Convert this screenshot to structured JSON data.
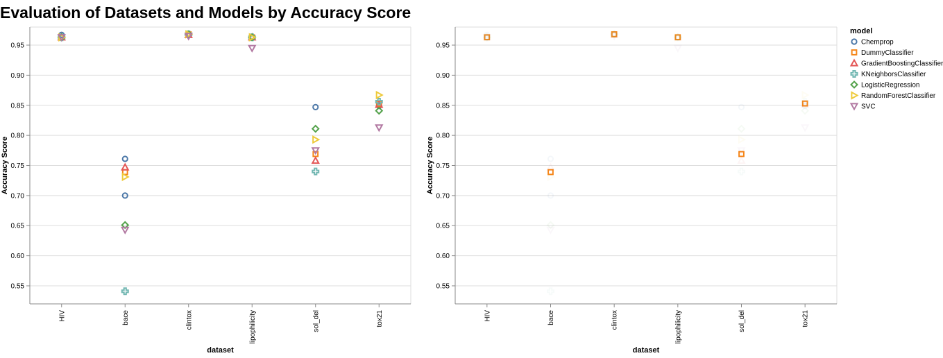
{
  "title": "Evaluation of Datasets and Models by Accuracy Score",
  "legend": {
    "title": "model",
    "position": "top-right",
    "items": [
      {
        "name": "Chemprop",
        "shape": "circle",
        "color": "#4c78a8"
      },
      {
        "name": "DummyClassifier",
        "shape": "square",
        "color": "#f58518"
      },
      {
        "name": "GradientBoostingClassifier",
        "shape": "triangle-up",
        "color": "#e45756"
      },
      {
        "name": "KNeighborsClassifier",
        "shape": "cross",
        "color": "#72b7b2"
      },
      {
        "name": "LogisticRegression",
        "shape": "diamond",
        "color": "#54a24b"
      },
      {
        "name": "RandomForestClassifier",
        "shape": "triangle-right",
        "color": "#eeca3b"
      },
      {
        "name": "SVC",
        "shape": "triangle-down",
        "color": "#b279a2"
      }
    ]
  },
  "chart_data": [
    {
      "type": "scatter",
      "xlabel": "dataset",
      "ylabel": "Accuracy Score",
      "categories": [
        "HIV",
        "bace",
        "clintox",
        "lipophilicity",
        "sol_del",
        "tox21"
      ],
      "yticks": [
        "0.55",
        "0.60",
        "0.65",
        "0.70",
        "0.75",
        "0.80",
        "0.85",
        "0.90",
        "0.95"
      ],
      "ylim": [
        0.52,
        0.98
      ],
      "grid": true,
      "series": [
        {
          "name": "Chemprop",
          "values": [
            0.967,
            0.761,
            0.968,
            0.963,
            0.847,
            0.849
          ]
        },
        {
          "name": "DummyClassifier",
          "values": [
            0.963,
            0.739,
            0.968,
            0.963,
            0.769,
            0.853
          ]
        },
        {
          "name": "GradientBoostingClassifier",
          "values": [
            0.963,
            0.747,
            0.967,
            0.963,
            0.758,
            0.851
          ]
        },
        {
          "name": "KNeighborsClassifier",
          "values": [
            0.963,
            0.541,
            0.968,
            0.963,
            0.74,
            0.856
          ]
        },
        {
          "name": "LogisticRegression",
          "values": [
            0.963,
            0.651,
            0.968,
            0.963,
            0.811,
            0.841
          ]
        },
        {
          "name": "RandomForestClassifier",
          "values": [
            0.963,
            0.731,
            0.968,
            0.963,
            0.793,
            0.867
          ]
        },
        {
          "name": "SVC",
          "values": [
            0.963,
            0.643,
            0.965,
            0.945,
            0.775,
            0.813
          ]
        }
      ],
      "extra_points": [
        {
          "series": "Chemprop",
          "category": "bace",
          "value": 0.7
        }
      ]
    },
    {
      "type": "scatter",
      "xlabel": "dataset",
      "ylabel": "Accuracy Score",
      "categories": [
        "HIV",
        "bace",
        "clintox",
        "lipophilicity",
        "sol_del",
        "tox21"
      ],
      "yticks": [
        "0.55",
        "0.60",
        "0.65",
        "0.70",
        "0.75",
        "0.80",
        "0.85",
        "0.90",
        "0.95"
      ],
      "ylim": [
        0.52,
        0.98
      ],
      "grid": true,
      "highlight": "DummyClassifier",
      "faded_opacity": 0.06
    }
  ]
}
